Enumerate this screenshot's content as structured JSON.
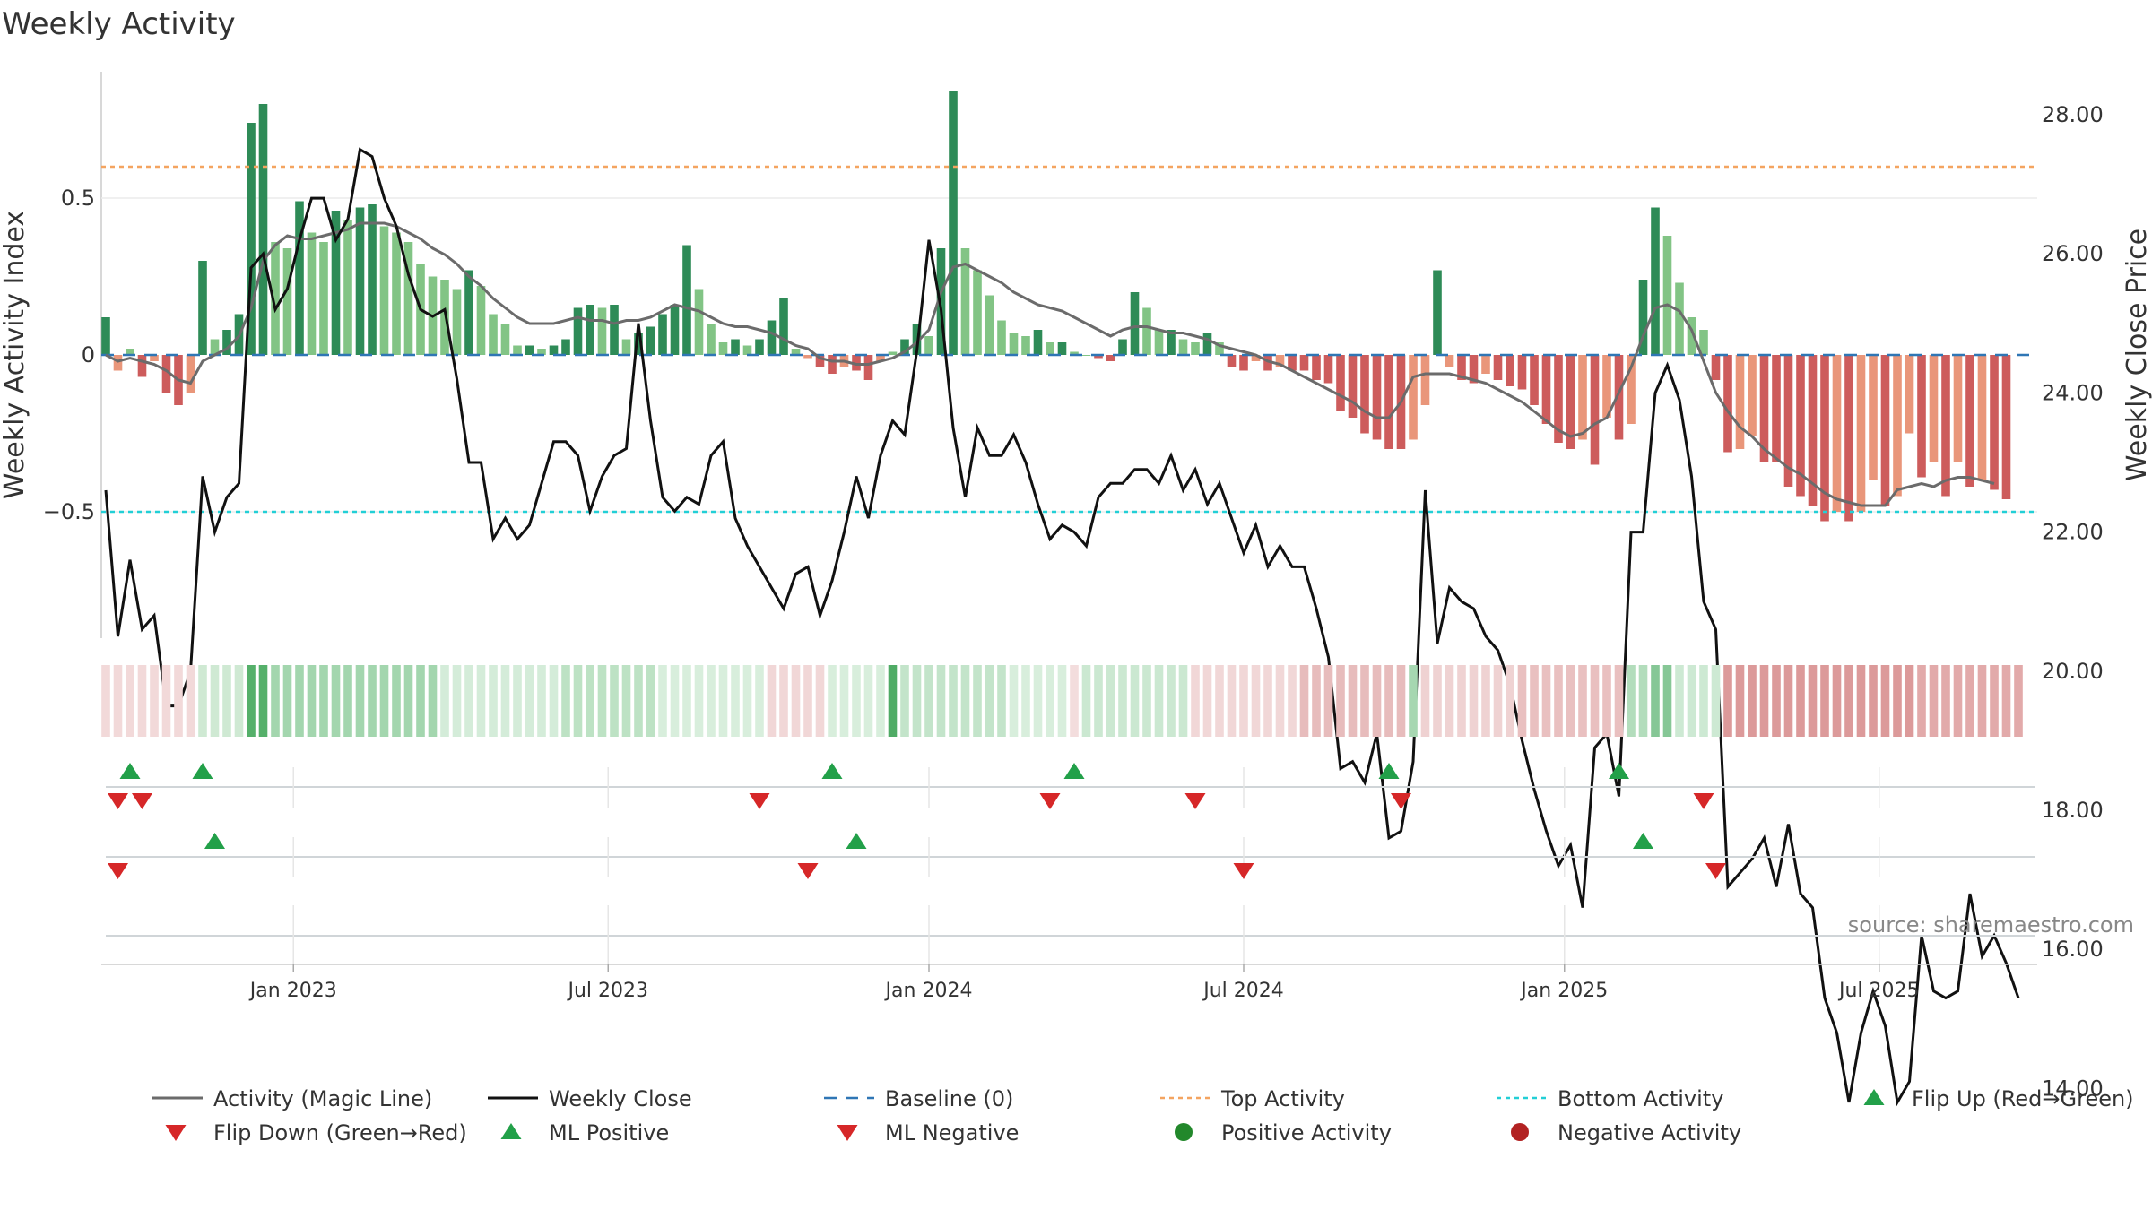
{
  "chart_data": {
    "type": "bar",
    "title": "Weekly Activity",
    "ylabel_left": "Weekly Activity Index",
    "ylabel_right": "Weekly Close Price",
    "left_yticks": [
      {
        "value": 0.5,
        "label": "0.5"
      },
      {
        "value": 0,
        "label": "0"
      },
      {
        "value": -0.5,
        "label": "−0.5"
      }
    ],
    "left_ylim": [
      -0.9,
      0.9
    ],
    "right_yticks": [
      {
        "value": 28,
        "label": "28.00"
      },
      {
        "value": 26,
        "label": "26.00"
      },
      {
        "value": 24,
        "label": "24.00"
      },
      {
        "value": 22,
        "label": "22.00"
      },
      {
        "value": 20,
        "label": "20.00"
      },
      {
        "value": 18,
        "label": "18.00"
      },
      {
        "value": 16,
        "label": "16.00"
      },
      {
        "value": 14,
        "label": "14.00"
      }
    ],
    "right_ylim": [
      13.0,
      29.2
    ],
    "x_ticks": [
      {
        "week": 15.5,
        "label": "Jan 2023"
      },
      {
        "week": 41.5,
        "label": "Jul 2023"
      },
      {
        "week": 68,
        "label": "Jan 2024"
      },
      {
        "week": 94,
        "label": "Jul 2024"
      },
      {
        "week": 120.5,
        "label": "Jan 2025"
      },
      {
        "week": 146.5,
        "label": "Jul 2025"
      }
    ],
    "top_activity": 0.6,
    "bottom_activity": -0.5,
    "activity_values": [
      0.12,
      -0.05,
      0.02,
      -0.07,
      -0.02,
      -0.12,
      -0.16,
      -0.12,
      0.3,
      0.05,
      0.08,
      0.13,
      0.74,
      0.8,
      0.36,
      0.34,
      0.49,
      0.39,
      0.36,
      0.46,
      0.43,
      0.47,
      0.48,
      0.41,
      0.39,
      0.36,
      0.29,
      0.25,
      0.24,
      0.21,
      0.27,
      0.22,
      0.13,
      0.1,
      0.03,
      0.03,
      0.02,
      0.03,
      0.05,
      0.15,
      0.16,
      0.15,
      0.16,
      0.05,
      0.07,
      0.09,
      0.13,
      0.16,
      0.35,
      0.21,
      0.1,
      0.04,
      0.05,
      0.03,
      0.05,
      0.11,
      0.18,
      0.02,
      -0.01,
      -0.04,
      -0.06,
      -0.04,
      -0.05,
      -0.08,
      -0.02,
      0.01,
      0.05,
      0.1,
      0.06,
      0.34,
      0.84,
      0.34,
      0.27,
      0.19,
      0.11,
      0.07,
      0.06,
      0.08,
      0.04,
      0.04,
      0.01,
      0.0,
      -0.01,
      -0.02,
      0.05,
      0.2,
      0.15,
      0.08,
      0.08,
      0.05,
      0.04,
      0.07,
      0.04,
      -0.04,
      -0.05,
      -0.02,
      -0.05,
      -0.04,
      -0.05,
      -0.05,
      -0.08,
      -0.09,
      -0.18,
      -0.2,
      -0.25,
      -0.27,
      -0.3,
      -0.3,
      -0.27,
      -0.16,
      0.27,
      -0.04,
      -0.08,
      -0.09,
      -0.06,
      -0.08,
      -0.1,
      -0.11,
      -0.16,
      -0.22,
      -0.28,
      -0.3,
      -0.27,
      -0.35,
      -0.2,
      -0.27,
      -0.22,
      0.24,
      0.47,
      0.38,
      0.23,
      0.12,
      0.08,
      -0.08,
      -0.31,
      -0.3,
      -0.26,
      -0.34,
      -0.34,
      -0.42,
      -0.45,
      -0.48,
      -0.53,
      -0.5,
      -0.53,
      -0.5,
      -0.4,
      -0.48,
      -0.45,
      -0.25,
      -0.39,
      -0.34,
      -0.45,
      -0.34,
      -0.42,
      -0.4,
      -0.43,
      -0.46
    ],
    "magic_line": [
      0.0,
      -0.02,
      -0.01,
      -0.02,
      -0.03,
      -0.05,
      -0.08,
      -0.09,
      -0.02,
      0.0,
      0.02,
      0.06,
      0.15,
      0.3,
      0.35,
      0.38,
      0.37,
      0.37,
      0.38,
      0.39,
      0.4,
      0.42,
      0.42,
      0.42,
      0.41,
      0.39,
      0.37,
      0.34,
      0.32,
      0.29,
      0.25,
      0.22,
      0.18,
      0.15,
      0.12,
      0.1,
      0.1,
      0.1,
      0.11,
      0.12,
      0.11,
      0.11,
      0.1,
      0.11,
      0.11,
      0.12,
      0.14,
      0.16,
      0.15,
      0.14,
      0.12,
      0.1,
      0.09,
      0.09,
      0.08,
      0.07,
      0.05,
      0.03,
      0.02,
      -0.01,
      -0.02,
      -0.02,
      -0.03,
      -0.03,
      -0.02,
      -0.01,
      0.01,
      0.04,
      0.08,
      0.2,
      0.28,
      0.29,
      0.27,
      0.25,
      0.23,
      0.2,
      0.18,
      0.16,
      0.15,
      0.14,
      0.12,
      0.1,
      0.08,
      0.06,
      0.08,
      0.09,
      0.09,
      0.08,
      0.07,
      0.07,
      0.06,
      0.05,
      0.03,
      0.02,
      0.01,
      0.0,
      -0.02,
      -0.03,
      -0.05,
      -0.07,
      -0.09,
      -0.11,
      -0.13,
      -0.15,
      -0.18,
      -0.2,
      -0.2,
      -0.15,
      -0.07,
      -0.06,
      -0.06,
      -0.06,
      -0.07,
      -0.08,
      -0.09,
      -0.11,
      -0.13,
      -0.15,
      -0.18,
      -0.21,
      -0.24,
      -0.26,
      -0.25,
      -0.22,
      -0.2,
      -0.12,
      -0.04,
      0.06,
      0.15,
      0.16,
      0.14,
      0.08,
      -0.02,
      -0.12,
      -0.18,
      -0.23,
      -0.26,
      -0.3,
      -0.33,
      -0.36,
      -0.38,
      -0.41,
      -0.44,
      -0.46,
      -0.47,
      -0.48,
      -0.48,
      -0.48,
      -0.43,
      -0.42,
      -0.41,
      -0.42,
      -0.4,
      -0.39,
      -0.39,
      -0.4,
      -0.41
    ],
    "weekly_close": [
      22.6,
      20.5,
      21.6,
      20.6,
      20.8,
      19.5,
      19.5,
      20.0,
      22.8,
      22.0,
      22.5,
      22.7,
      25.8,
      26.0,
      25.2,
      25.5,
      26.2,
      26.8,
      26.8,
      26.2,
      26.5,
      27.5,
      27.4,
      26.8,
      26.4,
      25.7,
      25.2,
      25.1,
      25.2,
      24.2,
      23.0,
      23.0,
      21.9,
      22.2,
      21.9,
      22.1,
      22.7,
      23.3,
      23.3,
      23.1,
      22.3,
      22.8,
      23.1,
      23.2,
      25.0,
      23.6,
      22.5,
      22.3,
      22.5,
      22.4,
      23.1,
      23.3,
      22.2,
      21.8,
      21.5,
      21.2,
      20.9,
      21.4,
      21.5,
      20.8,
      21.3,
      22.0,
      22.8,
      22.2,
      23.1,
      23.6,
      23.4,
      24.6,
      26.2,
      25.2,
      23.5,
      22.5,
      23.5,
      23.1,
      23.1,
      23.4,
      23.0,
      22.4,
      21.9,
      22.1,
      22.0,
      21.8,
      22.5,
      22.7,
      22.7,
      22.9,
      22.9,
      22.7,
      23.1,
      22.6,
      22.9,
      22.4,
      22.7,
      22.2,
      21.7,
      22.1,
      21.5,
      21.8,
      21.5,
      21.5,
      20.9,
      20.2,
      18.6,
      18.7,
      18.4,
      19.1,
      17.6,
      17.7,
      18.7,
      22.6,
      20.4,
      21.2,
      21.0,
      20.9,
      20.5,
      20.3,
      19.8,
      19.0,
      18.3,
      17.7,
      17.2,
      17.5,
      16.6,
      18.9,
      19.1,
      18.2,
      22.0,
      22.0,
      24.0,
      24.4,
      23.9,
      22.8,
      21.0,
      20.6,
      16.9,
      17.1,
      17.3,
      17.6,
      16.9,
      17.8,
      16.8,
      16.6,
      15.3,
      14.8,
      13.8,
      14.8,
      15.4,
      14.9,
      13.8,
      14.1,
      16.2,
      15.4,
      15.3,
      15.4,
      16.8,
      15.9,
      16.2,
      15.8,
      15.3
    ],
    "strip_segments": [
      {
        "from": 0,
        "to": 8,
        "color": "#f2d9d9"
      },
      {
        "from": 8,
        "to": 12,
        "color": "#cfe9d3"
      },
      {
        "from": 12,
        "to": 14,
        "color": "#55b06a"
      },
      {
        "from": 14,
        "to": 28,
        "color": "#a3d6ae"
      },
      {
        "from": 28,
        "to": 38,
        "color": "#d4ecd9"
      },
      {
        "from": 38,
        "to": 46,
        "color": "#bde2c4"
      },
      {
        "from": 46,
        "to": 55,
        "color": "#d8eedc"
      },
      {
        "from": 55,
        "to": 60,
        "color": "#f1d7d7"
      },
      {
        "from": 60,
        "to": 65,
        "color": "#d8eedc"
      },
      {
        "from": 65,
        "to": 66,
        "color": "#4fab65"
      },
      {
        "from": 66,
        "to": 75,
        "color": "#c3e4ca"
      },
      {
        "from": 75,
        "to": 80,
        "color": "#d8eedc"
      },
      {
        "from": 80,
        "to": 81,
        "color": "#f3dddd"
      },
      {
        "from": 81,
        "to": 90,
        "color": "#cbe8d1"
      },
      {
        "from": 90,
        "to": 99,
        "color": "#f1d7d7"
      },
      {
        "from": 99,
        "to": 108,
        "color": "#e7bcbc"
      },
      {
        "from": 108,
        "to": 109,
        "color": "#a6d7b1"
      },
      {
        "from": 109,
        "to": 117,
        "color": "#efd2d2"
      },
      {
        "from": 117,
        "to": 126,
        "color": "#e9c0c0"
      },
      {
        "from": 126,
        "to": 128,
        "color": "#b3ddbc"
      },
      {
        "from": 128,
        "to": 130,
        "color": "#86c796"
      },
      {
        "from": 130,
        "to": 134,
        "color": "#cde9d3"
      },
      {
        "from": 134,
        "to": 150,
        "color": "#dc9a9a"
      },
      {
        "from": 150,
        "to": 159,
        "color": "#e2aaaa"
      }
    ],
    "flip_up_weeks": [
      2,
      8,
      60,
      80,
      106,
      125
    ],
    "flip_down_weeks": [
      1,
      3,
      54,
      78,
      90,
      107,
      132
    ],
    "ml_positive_weeks": [
      9,
      62,
      127
    ],
    "ml_negative_weeks": [
      1,
      58,
      94,
      133
    ],
    "legend": [
      {
        "key": "magic",
        "label": "Activity (Magic Line)"
      },
      {
        "key": "close",
        "label": "Weekly Close"
      },
      {
        "key": "baseline",
        "label": "Baseline (0)"
      },
      {
        "key": "top",
        "label": "Top Activity"
      },
      {
        "key": "bottom",
        "label": "Bottom Activity"
      },
      {
        "key": "flipup",
        "label": "Flip Up (Red→Green)"
      },
      {
        "key": "flipdown",
        "label": "Flip Down (Green→Red)"
      },
      {
        "key": "mlpos",
        "label": "ML Positive"
      },
      {
        "key": "mlneg",
        "label": "ML Negative"
      },
      {
        "key": "posact",
        "label": "Positive Activity"
      },
      {
        "key": "negact",
        "label": "Negative Activity"
      }
    ],
    "source": "source: sharemaestro.com"
  },
  "colors": {
    "pos_strong": "#2e8b57",
    "pos_light": "#82c485",
    "neg_strong": "#cd5c5c",
    "neg_light": "#e9967a",
    "magic": "#6b6b6b",
    "close": "#111111",
    "baseline": "#2f76b5",
    "top": "#f4a460",
    "bottom": "#22cfd6",
    "flip_up": "#22a049",
    "flip_down": "#d62728",
    "pos_dot": "#22882b",
    "neg_dot": "#b22222"
  }
}
